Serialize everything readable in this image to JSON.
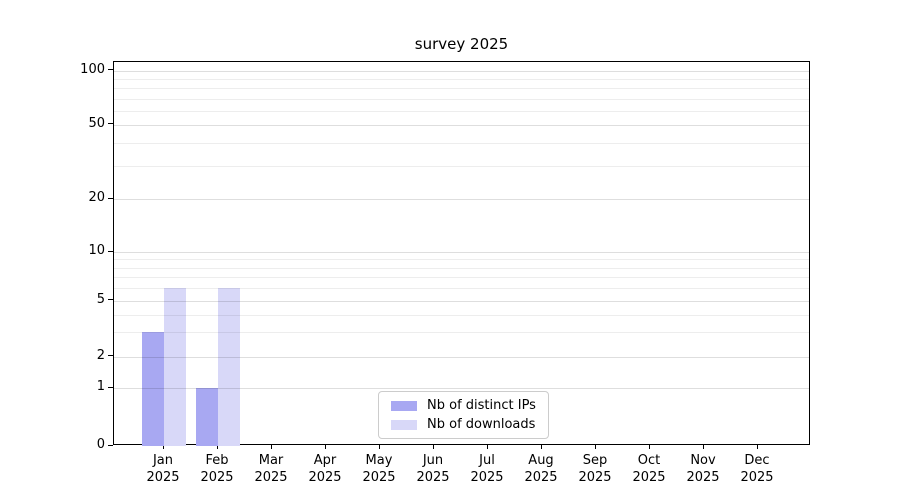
{
  "title": "survey 2025",
  "legend": {
    "items": [
      {
        "label": "Nb of distinct IPs",
        "color": "#a8a8f2"
      },
      {
        "label": "Nb of downloads",
        "color": "#d8d8f8"
      }
    ]
  },
  "chart_data": {
    "type": "bar",
    "title": "survey 2025",
    "categories": [
      "Jan 2025",
      "Feb 2025",
      "Mar 2025",
      "Apr 2025",
      "May 2025",
      "Jun 2025",
      "Jul 2025",
      "Aug 2025",
      "Sep 2025",
      "Oct 2025",
      "Nov 2025",
      "Dec 2025"
    ],
    "series": [
      {
        "name": "Nb of distinct IPs",
        "color": "#a8a8f2",
        "values": [
          3,
          1,
          0,
          0,
          0,
          0,
          0,
          0,
          0,
          0,
          0,
          0
        ]
      },
      {
        "name": "Nb of downloads",
        "color": "#d8d8f8",
        "values": [
          6,
          6,
          0,
          0,
          0,
          0,
          0,
          0,
          0,
          0,
          0,
          0
        ]
      }
    ],
    "xlabel": "",
    "ylabel": "",
    "yscale": "symlog",
    "ylim": [
      0,
      100
    ],
    "y_major_ticks": [
      0,
      1,
      2,
      5,
      10,
      20,
      50,
      100
    ],
    "y_minor_gridlines": [
      3,
      4,
      6,
      7,
      8,
      9,
      30,
      40,
      60,
      70,
      80,
      90
    ],
    "grid": true,
    "legend_position": "lower-center-inside",
    "y_anchor_fractions": {
      "0": 1.0,
      "1": 0.849,
      "2": 0.768,
      "5": 0.622,
      "10": 0.495,
      "20": 0.357,
      "50": 0.164,
      "100": 0.023
    }
  }
}
